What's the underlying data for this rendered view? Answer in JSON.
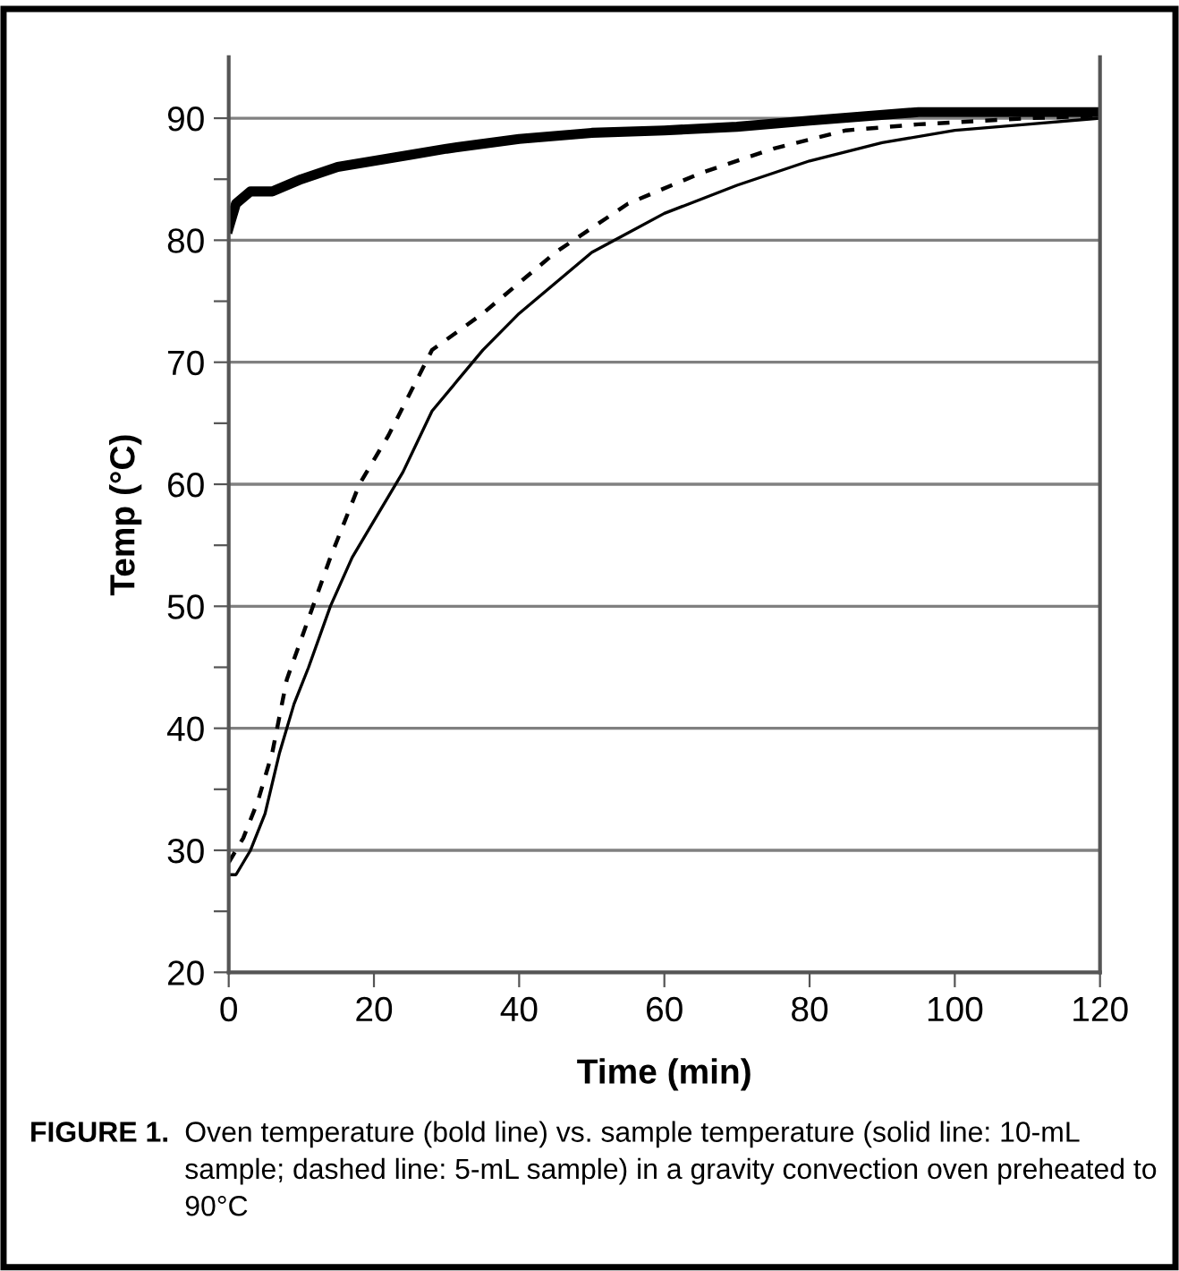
{
  "chart_data": {
    "type": "line",
    "xlabel": "Time (min)",
    "ylabel": "Temp (°C)",
    "xlim": [
      0,
      120
    ],
    "xticks": [
      0,
      20,
      40,
      60,
      80,
      100,
      120
    ],
    "ylim": [
      20,
      95
    ],
    "yticks": [
      20,
      {
        "value": 25,
        "label": null
      },
      30,
      {
        "value": 35,
        "label": null
      },
      40,
      {
        "value": 45,
        "label": null
      },
      50,
      {
        "value": 55,
        "label": null
      },
      60,
      {
        "value": 65,
        "label": null
      },
      70,
      {
        "value": 75,
        "label": null
      },
      80,
      {
        "value": 85,
        "label": null
      },
      90
    ],
    "grid": "y",
    "marker": "none",
    "legend": false,
    "series": [
      {
        "color": "#000000",
        "line_style": "solid",
        "x": [
          0,
          1,
          3,
          6,
          10,
          15,
          20,
          25,
          30,
          40,
          50,
          60,
          70,
          80,
          95,
          120
        ],
        "values": [
          81,
          83,
          84,
          84,
          85,
          86,
          86.5,
          87,
          87.5,
          88.3,
          88.8,
          89,
          89.3,
          89.8,
          90.5,
          90.5
        ]
      },
      {
        "color": "#000000",
        "line_style": "solid",
        "x": [
          0,
          1,
          3,
          5,
          7,
          9,
          11,
          14,
          17,
          20,
          24,
          28,
          35,
          40,
          50,
          60,
          70,
          80,
          90,
          100,
          110,
          120
        ],
        "values": [
          28,
          28,
          30,
          33,
          38,
          42,
          45,
          50,
          54,
          57,
          61,
          66,
          71,
          74,
          79,
          82.2,
          84.5,
          86.5,
          88,
          89,
          89.5,
          90
        ]
      },
      {
        "color": "#000000",
        "line_style": "dashed",
        "x": [
          0,
          2,
          4,
          6,
          8,
          11,
          14,
          18,
          22,
          28,
          35,
          45,
          55,
          65,
          75,
          85,
          95,
          110,
          120
        ],
        "values": [
          29,
          31,
          34,
          38,
          44,
          49,
          54,
          60,
          64,
          71,
          74,
          79,
          83,
          85.5,
          87.5,
          89,
          89.5,
          90,
          90.2
        ]
      }
    ],
    "annotations": [
      "FIGURE 1.",
      "Oven temperature (bold line) vs. sample temperature (solid line: 10-mL sample; dashed line: 5-mL sample) in a gravity convection oven preheated to 90°C"
    ]
  }
}
